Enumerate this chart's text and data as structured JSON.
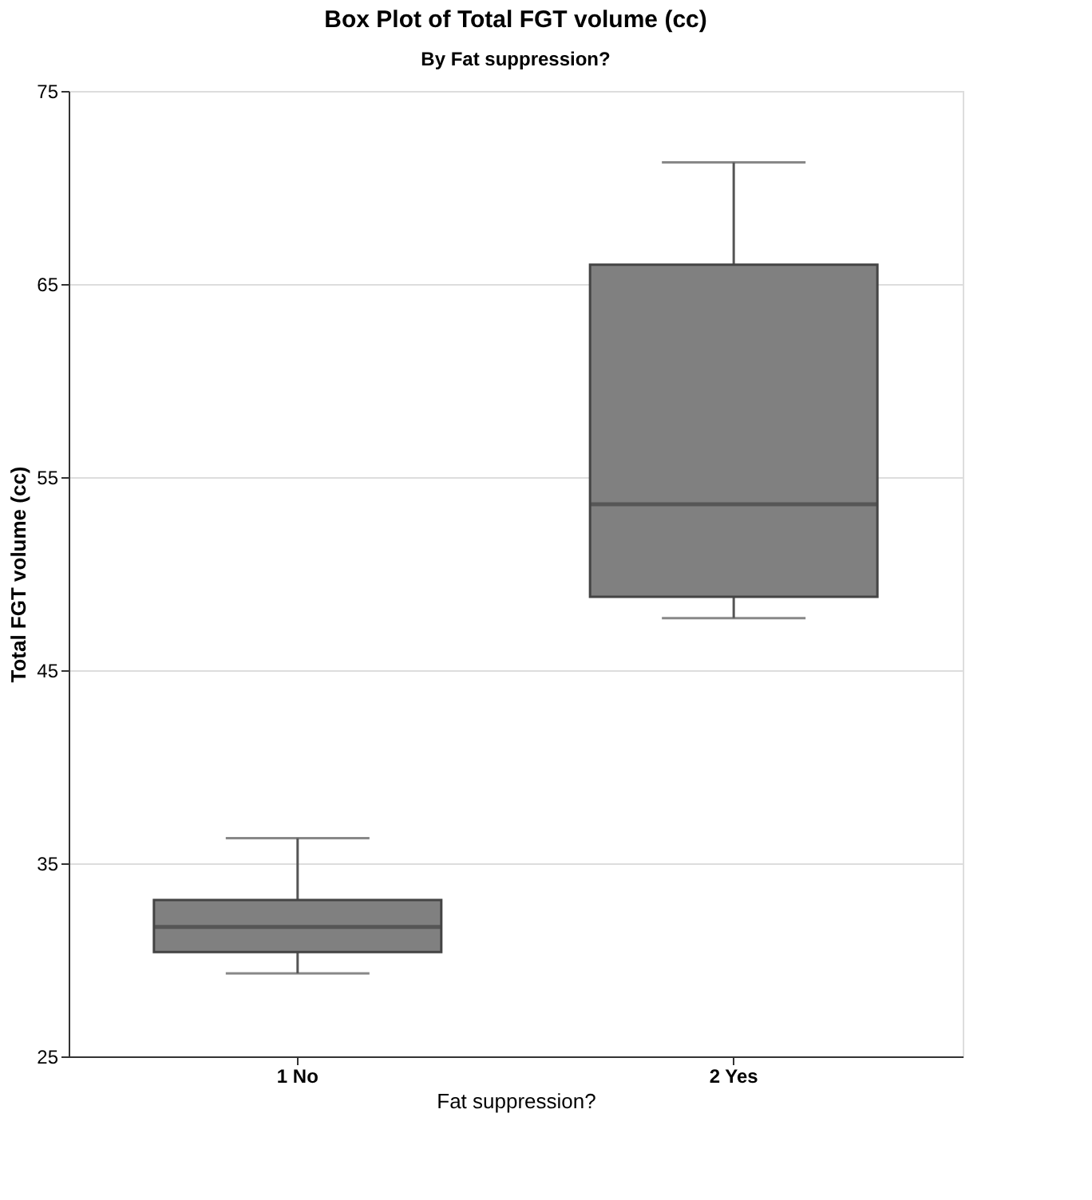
{
  "chart_data": {
    "type": "box",
    "title": "Box Plot of Total FGT volume (cc)",
    "subtitle": "By Fat suppression?",
    "xlabel": "Fat suppression?",
    "ylabel": "Total FGT volume (cc)",
    "categories": [
      "1 No",
      "2 Yes"
    ],
    "series": [
      {
        "color": "#808080",
        "boxes": [
          {
            "low": 29.3,
            "q1": 30.4,
            "median": 31.7,
            "q3": 33.1,
            "high": 36.3
          },
          {
            "low": 47.7,
            "q1": 48.8,
            "median": 53.6,
            "q3": 66.0,
            "high": 71.3
          }
        ]
      }
    ],
    "ylim": [
      25,
      75
    ],
    "yticks": [
      25,
      35,
      45,
      55,
      65,
      75
    ],
    "grid": "y"
  }
}
